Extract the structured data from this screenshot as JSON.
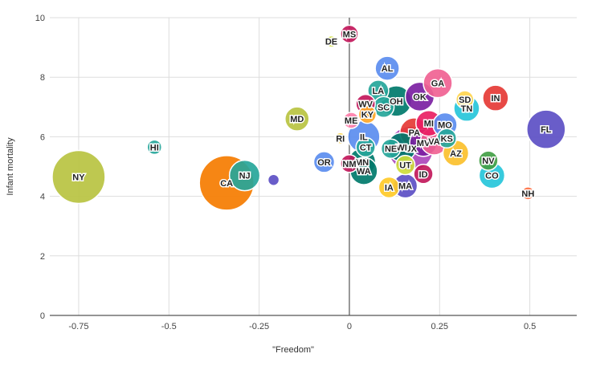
{
  "chart_data": {
    "type": "scatter",
    "title": "",
    "xlabel": "\"Freedom\"",
    "ylabel": "Infant mortality",
    "xlim": [
      -0.83,
      0.63
    ],
    "ylim": [
      0,
      10
    ],
    "xticks": [
      "-0.75",
      "-0.5",
      "-0.25",
      "0",
      "0.25",
      "0.5"
    ],
    "xtick_values": [
      -0.75,
      -0.5,
      -0.25,
      0,
      0.25,
      0.5
    ],
    "yticks": [
      "0",
      "2",
      "4",
      "6",
      "8",
      "10"
    ],
    "ytick_values": [
      0,
      2,
      4,
      6,
      8,
      10
    ],
    "grid": true,
    "points": [
      {
        "label": "NY",
        "x": -0.75,
        "y": 4.65,
        "size": 33,
        "color": "#b9c341"
      },
      {
        "label": "HI",
        "x": -0.54,
        "y": 5.65,
        "size": 9,
        "color": "#26a69a"
      },
      {
        "label": "CA",
        "x": -0.34,
        "y": 4.45,
        "size": 34,
        "color": "#f57c00"
      },
      {
        "label": "NJ",
        "x": -0.29,
        "y": 4.7,
        "size": 19,
        "color": "#26a69a"
      },
      {
        "label": "",
        "x": -0.21,
        "y": 4.55,
        "size": 7,
        "color": "#5c4fc4"
      },
      {
        "label": "MD",
        "x": -0.145,
        "y": 6.6,
        "size": 15,
        "color": "#b9c341"
      },
      {
        "label": "OR",
        "x": -0.07,
        "y": 5.15,
        "size": 13,
        "color": "#5b8def"
      },
      {
        "label": "DE",
        "x": -0.05,
        "y": 9.2,
        "size": 7,
        "color": "#cddc39"
      },
      {
        "label": "MS",
        "x": 0.0,
        "y": 9.45,
        "size": 11,
        "color": "#c2185b"
      },
      {
        "label": "RI",
        "x": -0.025,
        "y": 5.95,
        "size": 7,
        "color": "#ffd54f"
      },
      {
        "label": "NM",
        "x": 0.0,
        "y": 5.1,
        "size": 11,
        "color": "#c2185b"
      },
      {
        "label": "ME",
        "x": 0.005,
        "y": 6.55,
        "size": 10,
        "color": "#ff80ab"
      },
      {
        "label": "WV",
        "x": 0.045,
        "y": 7.1,
        "size": 12,
        "color": "#c2185b"
      },
      {
        "label": "KY",
        "x": 0.05,
        "y": 6.75,
        "size": 11,
        "color": "#ffa726"
      },
      {
        "label": "LA",
        "x": 0.08,
        "y": 7.55,
        "size": 13,
        "color": "#26a69a"
      },
      {
        "label": "AL",
        "x": 0.105,
        "y": 8.3,
        "size": 15,
        "color": "#5b8def"
      },
      {
        "label": "SC",
        "x": 0.095,
        "y": 7.0,
        "size": 13,
        "color": "#26a69a"
      },
      {
        "label": "OH",
        "x": 0.13,
        "y": 7.2,
        "size": 19,
        "color": "#00796b"
      },
      {
        "label": "IL",
        "x": 0.04,
        "y": 6.0,
        "size": 20,
        "color": "#5b8def"
      },
      {
        "label": "CT",
        "x": 0.045,
        "y": 5.65,
        "size": 12,
        "color": "#26a69a"
      },
      {
        "label": "MN",
        "x": 0.035,
        "y": 5.15,
        "size": 17,
        "color": "#00796b"
      },
      {
        "label": "WA",
        "x": 0.04,
        "y": 4.85,
        "size": 17,
        "color": "#00796b"
      },
      {
        "label": "OK",
        "x": 0.195,
        "y": 7.35,
        "size": 18,
        "color": "#7b1fa2"
      },
      {
        "label": "GA",
        "x": 0.245,
        "y": 7.8,
        "size": 18,
        "color": "#f06292"
      },
      {
        "label": "SD",
        "x": 0.32,
        "y": 7.25,
        "size": 11,
        "color": "#ffd54f"
      },
      {
        "label": "TN",
        "x": 0.325,
        "y": 6.95,
        "size": 16,
        "color": "#26c6da"
      },
      {
        "label": "IN",
        "x": 0.405,
        "y": 7.3,
        "size": 16,
        "color": "#e53935"
      },
      {
        "label": "MI",
        "x": 0.22,
        "y": 6.45,
        "size": 16,
        "color": "#e91e63"
      },
      {
        "label": "MO",
        "x": 0.265,
        "y": 6.4,
        "size": 15,
        "color": "#5b8def"
      },
      {
        "label": "PA",
        "x": 0.18,
        "y": 6.15,
        "size": 18,
        "color": "#e53935"
      },
      {
        "label": "NE",
        "x": 0.115,
        "y": 5.6,
        "size": 12,
        "color": "#26a69a"
      },
      {
        "label": "WI",
        "x": 0.145,
        "y": 5.65,
        "size": 18,
        "color": "#00796b"
      },
      {
        "label": "UX",
        "x": 0.17,
        "y": 5.6,
        "size": 28,
        "color": "#ab47bc"
      },
      {
        "label": "MV",
        "x": 0.205,
        "y": 5.8,
        "size": 17,
        "color": "#7b1fa2"
      },
      {
        "label": "VA",
        "x": 0.235,
        "y": 5.85,
        "size": 17,
        "color": "#f06292"
      },
      {
        "label": "KS",
        "x": 0.27,
        "y": 5.95,
        "size": 12,
        "color": "#26a69a"
      },
      {
        "label": "AZ",
        "x": 0.295,
        "y": 5.45,
        "size": 16,
        "color": "#fbc02d"
      },
      {
        "label": "UT",
        "x": 0.155,
        "y": 5.05,
        "size": 12,
        "color": "#cddc39"
      },
      {
        "label": "ID",
        "x": 0.205,
        "y": 4.75,
        "size": 12,
        "color": "#c2185b"
      },
      {
        "label": "IA",
        "x": 0.11,
        "y": 4.3,
        "size": 13,
        "color": "#ffca28"
      },
      {
        "label": "MA",
        "x": 0.155,
        "y": 4.35,
        "size": 15,
        "color": "#5c4fc4"
      },
      {
        "label": "NV",
        "x": 0.385,
        "y": 5.2,
        "size": 12,
        "color": "#43a047"
      },
      {
        "label": "CO",
        "x": 0.395,
        "y": 4.7,
        "size": 16,
        "color": "#26c6da"
      },
      {
        "label": "NH",
        "x": 0.495,
        "y": 4.1,
        "size": 8,
        "color": "#ff7043"
      },
      {
        "label": "FL",
        "x": 0.545,
        "y": 6.25,
        "size": 24,
        "color": "#5c4fc4"
      }
    ]
  }
}
